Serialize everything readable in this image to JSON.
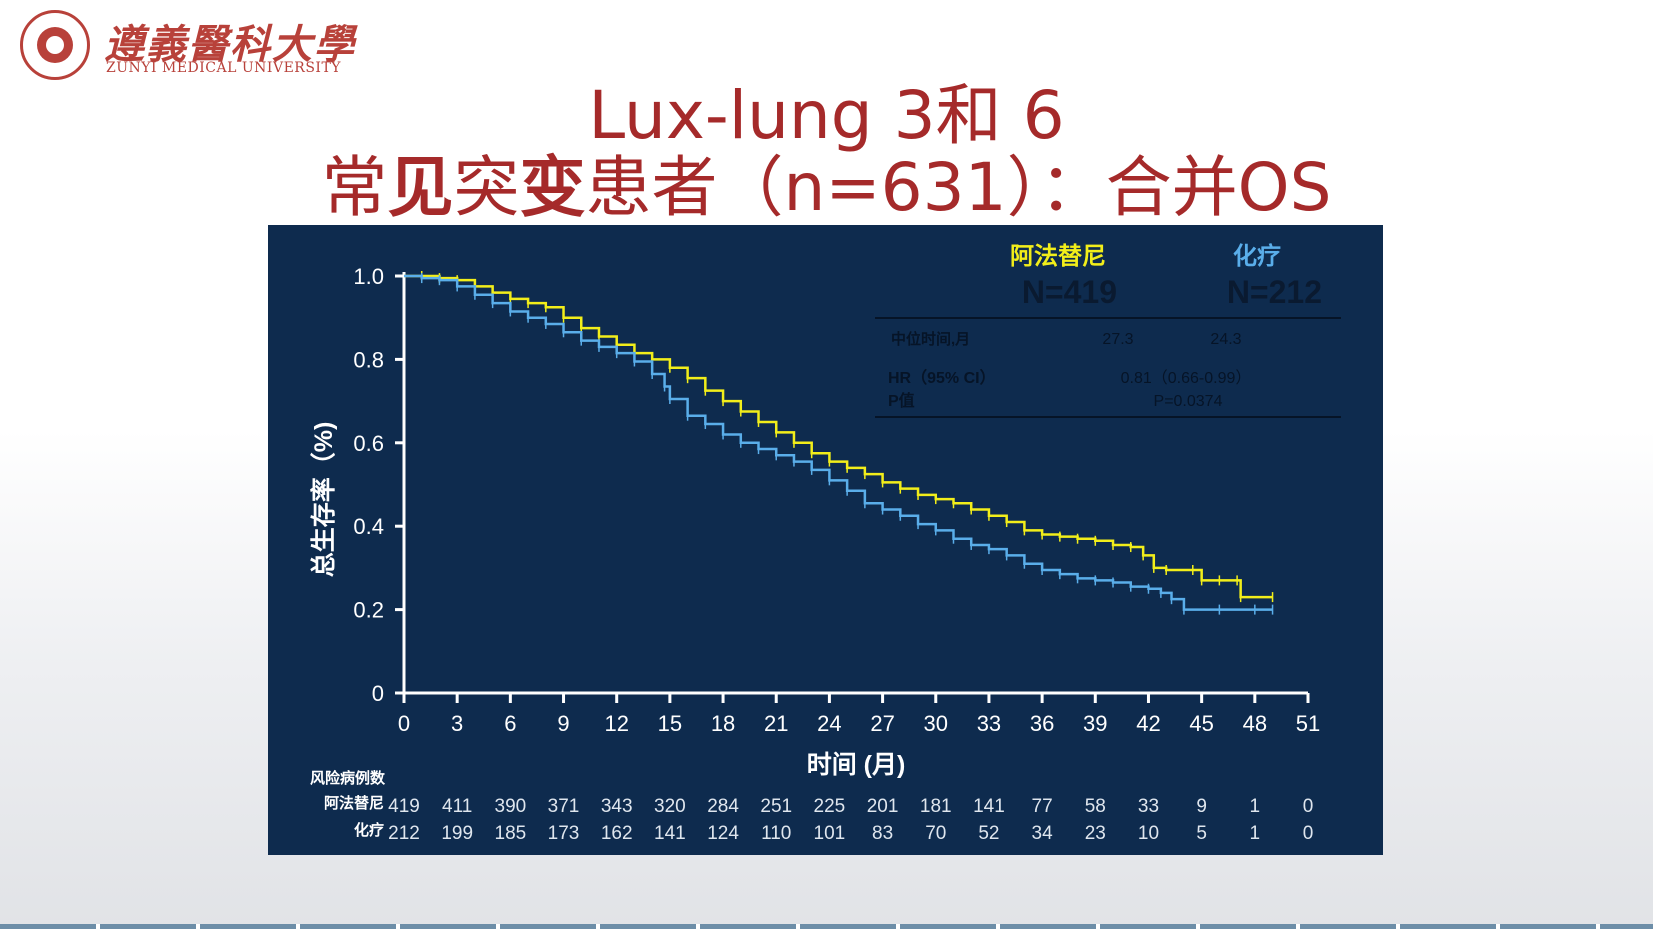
{
  "logo": {
    "name_cn": "遵義醫科大學",
    "name_en": "ZUNYI MEDICAL UNIVERSITY"
  },
  "title": {
    "line1": "Lux-lung 3和 6",
    "line2_a": "常",
    "line2_b": "见",
    "line2_c": "突",
    "line2_d": "变",
    "line2_e": "患者（n=631）：合并OS"
  },
  "colors": {
    "title": "#a52a2a",
    "panel": "#0e2b4e",
    "afatinib": "#f2ee1a",
    "chemo": "#5aaeea",
    "axis": "#ffffff"
  },
  "chart_data": {
    "type": "line",
    "title": "",
    "xlabel": "时间 (月)",
    "ylabel": "总生存率（%)",
    "xlim": [
      0,
      51
    ],
    "ylim": [
      0,
      1.0
    ],
    "x_ticks": [
      0,
      3,
      6,
      9,
      12,
      15,
      18,
      21,
      24,
      27,
      30,
      33,
      36,
      39,
      42,
      45,
      48,
      51
    ],
    "y_ticks": [
      {
        "value": 0,
        "label": "0"
      },
      {
        "value": 0.2,
        "label": "0.2"
      },
      {
        "value": 0.4,
        "label": "0.4"
      },
      {
        "value": 0.6,
        "label": "0.6"
      },
      {
        "value": 0.8,
        "label": "0.8"
      },
      {
        "value": 1.0,
        "label": "1.0"
      }
    ],
    "legend": {
      "position": "top-right",
      "entries": [
        {
          "label": "阿法替尼",
          "n_label": "N=419",
          "color": "#f2ee1a"
        },
        {
          "label": "化疗",
          "n_label": "N=212",
          "color": "#5aaeea"
        }
      ]
    },
    "stats_table": {
      "rows": [
        {
          "label": "中位时间,月",
          "col1": "27.3",
          "col2": "24.3"
        },
        {
          "label": "HR（95% CI）",
          "value": "0.81（0.66-0.99）"
        },
        {
          "label": "P值",
          "value": "P=0.0374"
        }
      ]
    },
    "series": [
      {
        "name": "阿法替尼",
        "color": "#f2ee1a",
        "points": [
          [
            0,
            1.0
          ],
          [
            1,
            1.0
          ],
          [
            2,
            0.995
          ],
          [
            3,
            0.99
          ],
          [
            4,
            0.975
          ],
          [
            5,
            0.96
          ],
          [
            6,
            0.945
          ],
          [
            7,
            0.935
          ],
          [
            8,
            0.925
          ],
          [
            9,
            0.9
          ],
          [
            10,
            0.875
          ],
          [
            11,
            0.855
          ],
          [
            12,
            0.835
          ],
          [
            13,
            0.815
          ],
          [
            14,
            0.8
          ],
          [
            15,
            0.78
          ],
          [
            16,
            0.755
          ],
          [
            17,
            0.725
          ],
          [
            18,
            0.7
          ],
          [
            19,
            0.675
          ],
          [
            20,
            0.65
          ],
          [
            21,
            0.625
          ],
          [
            22,
            0.6
          ],
          [
            23,
            0.575
          ],
          [
            24,
            0.555
          ],
          [
            25,
            0.54
          ],
          [
            26,
            0.525
          ],
          [
            27,
            0.505
          ],
          [
            28,
            0.49
          ],
          [
            29,
            0.475
          ],
          [
            30,
            0.465
          ],
          [
            31,
            0.455
          ],
          [
            32,
            0.44
          ],
          [
            33,
            0.425
          ],
          [
            34,
            0.41
          ],
          [
            35,
            0.39
          ],
          [
            36,
            0.38
          ],
          [
            37,
            0.375
          ],
          [
            38,
            0.37
          ],
          [
            39,
            0.365
          ],
          [
            40,
            0.355
          ],
          [
            41,
            0.35
          ],
          [
            41.7,
            0.33
          ],
          [
            42.3,
            0.3
          ],
          [
            43,
            0.295
          ],
          [
            44.5,
            0.295
          ],
          [
            45,
            0.27
          ],
          [
            46,
            0.27
          ],
          [
            47,
            0.27
          ],
          [
            47.2,
            0.23
          ],
          [
            49,
            0.23
          ]
        ]
      },
      {
        "name": "化疗",
        "color": "#5aaeea",
        "points": [
          [
            0,
            1.0
          ],
          [
            1,
            0.995
          ],
          [
            2,
            0.99
          ],
          [
            3,
            0.975
          ],
          [
            4,
            0.955
          ],
          [
            5,
            0.935
          ],
          [
            6,
            0.915
          ],
          [
            7,
            0.9
          ],
          [
            8,
            0.885
          ],
          [
            9,
            0.865
          ],
          [
            10,
            0.845
          ],
          [
            11,
            0.83
          ],
          [
            12,
            0.815
          ],
          [
            13,
            0.795
          ],
          [
            14,
            0.765
          ],
          [
            14.7,
            0.735
          ],
          [
            15,
            0.705
          ],
          [
            16,
            0.665
          ],
          [
            17,
            0.645
          ],
          [
            18,
            0.62
          ],
          [
            19,
            0.6
          ],
          [
            20,
            0.585
          ],
          [
            21,
            0.57
          ],
          [
            22,
            0.555
          ],
          [
            23,
            0.535
          ],
          [
            24,
            0.51
          ],
          [
            25,
            0.485
          ],
          [
            26,
            0.455
          ],
          [
            27,
            0.44
          ],
          [
            28,
            0.425
          ],
          [
            29,
            0.405
          ],
          [
            30,
            0.39
          ],
          [
            31,
            0.37
          ],
          [
            32,
            0.355
          ],
          [
            33,
            0.345
          ],
          [
            34,
            0.33
          ],
          [
            35,
            0.31
          ],
          [
            36,
            0.295
          ],
          [
            37,
            0.285
          ],
          [
            38,
            0.275
          ],
          [
            39,
            0.27
          ],
          [
            40,
            0.265
          ],
          [
            41,
            0.255
          ],
          [
            42,
            0.25
          ],
          [
            42.7,
            0.24
          ],
          [
            43.3,
            0.225
          ],
          [
            44,
            0.2
          ],
          [
            46,
            0.2
          ],
          [
            48,
            0.2
          ],
          [
            49,
            0.2
          ]
        ]
      }
    ],
    "risk_table": {
      "title": "风险病例数",
      "rows": [
        {
          "label": "阿法替尼",
          "values": [
            419,
            411,
            390,
            371,
            343,
            320,
            284,
            251,
            225,
            201,
            181,
            141,
            77,
            58,
            33,
            9,
            1,
            0
          ]
        },
        {
          "label": "化疗",
          "values": [
            212,
            199,
            185,
            173,
            162,
            141,
            124,
            110,
            101,
            83,
            70,
            52,
            34,
            23,
            10,
            5,
            1,
            0
          ]
        }
      ]
    }
  }
}
